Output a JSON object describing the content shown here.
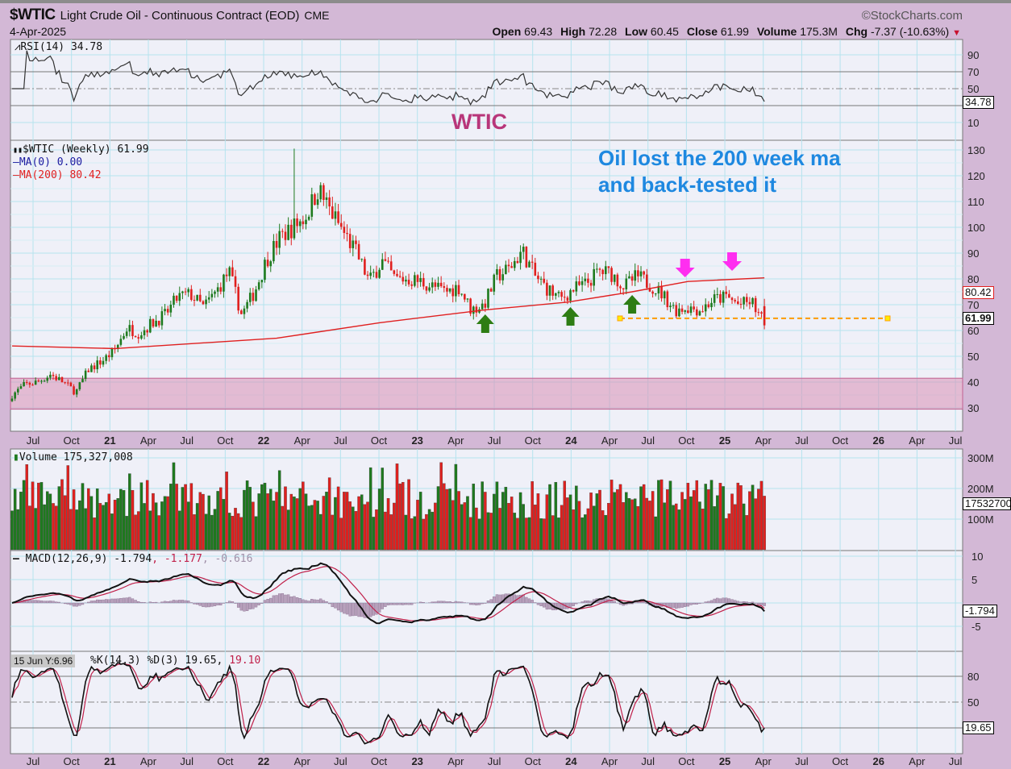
{
  "header": {
    "symbol": "$WTIC",
    "description": "Light Crude Oil - Continuous Contract (EOD)",
    "exchange": "CME",
    "date": "4-Apr-2025",
    "brand": "©StockCharts.com",
    "open_label": "Open",
    "open": "69.43",
    "high_label": "High",
    "high": "72.28",
    "low_label": "Low",
    "low": "60.45",
    "close_label": "Close",
    "close": "61.99",
    "volume_label": "Volume",
    "volume": "175.3M",
    "chg_label": "Chg",
    "chg": "-7.37 (-10.63%)"
  },
  "panels": {
    "rsi": {
      "label": "RSI(14) 34.78",
      "value_tag": "34.78",
      "ticks": [
        "90",
        "70",
        "50",
        "10"
      ]
    },
    "price": {
      "label": "$WTIC (Weekly) 61.99",
      "ma0": "MA(0) 0.00",
      "ma200": "MA(200) 80.42",
      "ma_tag": "80.42",
      "close_tag": "61.99",
      "ticks": [
        "130",
        "120",
        "110",
        "100",
        "90",
        "80",
        "70",
        "60",
        "50",
        "40",
        "30"
      ]
    },
    "volume": {
      "label": "Volume 175,327,008",
      "value_tag": "175327008",
      "ticks": [
        "300M",
        "200M",
        "100M"
      ]
    },
    "macd": {
      "label": "MACD(12,26,9) -1.794",
      "signal": ", -1.177",
      "hist": ", -0.616",
      "value_tag": "-1.794",
      "ticks": [
        "10",
        "5",
        "-5"
      ]
    },
    "stoch": {
      "tooltip": "15 Jun Y:6.96",
      "label": "%K(14,3) %D(3) 19.65,",
      "d_value": " 19.10",
      "value_tag": "19.65",
      "ticks": [
        "80",
        "50"
      ]
    }
  },
  "annotations": {
    "watermark": "WTIC",
    "note_line1": "Oil lost the 200 week ma",
    "note_line2": "and back-tested it",
    "support_level": 64.7
  },
  "x_labels": [
    "Jul",
    "Oct",
    "21",
    "Apr",
    "Jul",
    "Oct",
    "22",
    "Apr",
    "Jul",
    "Oct",
    "23",
    "Apr",
    "Jul",
    "Oct",
    "24",
    "Apr",
    "Jul",
    "Oct",
    "25",
    "Apr",
    "Jul",
    "Oct",
    "26",
    "Apr",
    "Jul"
  ],
  "colors": {
    "up": "#1e7a1e",
    "down": "#e0201e",
    "ma200": "#e02020",
    "note": "#1e88e0",
    "watermark": "#b8367a",
    "arrow_up": "#2e7d14",
    "arrow_down": "#ff2ef0",
    "support": "#ffa010",
    "band": "#d98fb5"
  },
  "chart_data": {
    "type": "candlestick",
    "title": "$WTIC Light Crude Oil - Continuous Contract (EOD) Weekly",
    "x_unit": "month (May-2020 to Apr-2025)",
    "monthly_close": [
      35,
      39,
      40,
      43,
      40,
      36,
      45,
      48,
      52,
      61,
      59,
      63,
      66,
      73,
      74,
      69,
      75,
      83,
      66,
      75,
      88,
      96,
      100,
      104,
      115,
      106,
      98,
      90,
      79,
      87,
      80,
      80,
      79,
      77,
      75,
      77,
      68,
      70,
      81,
      84,
      91,
      81,
      76,
      72,
      76,
      78,
      83,
      82,
      77,
      81,
      78,
      74,
      68,
      69,
      68,
      72,
      73,
      70,
      71,
      62
    ],
    "last_bar": {
      "open": 69.43,
      "high": 72.28,
      "low": 60.45,
      "close": 61.99,
      "volume": 175327008
    },
    "spike_high": 130.5,
    "ma200_by_week": [
      [
        0,
        54
      ],
      [
        35,
        53
      ],
      [
        90,
        57
      ],
      [
        125,
        63
      ],
      [
        161,
        68
      ],
      [
        189,
        71
      ],
      [
        211,
        75
      ],
      [
        230,
        79
      ],
      [
        256,
        80.42
      ]
    ],
    "price_ylim": [
      25,
      135
    ],
    "support_zone": [
      29.5,
      41.5
    ],
    "markers": {
      "up_arrows_week": [
        161,
        190,
        211
      ],
      "down_arrows_week": [
        229,
        245
      ]
    },
    "last_values": {
      "rsi": 34.78,
      "macd": -1.794,
      "signal": -1.177,
      "histogram": -0.616,
      "k": 19.65,
      "d": 19.1
    }
  }
}
